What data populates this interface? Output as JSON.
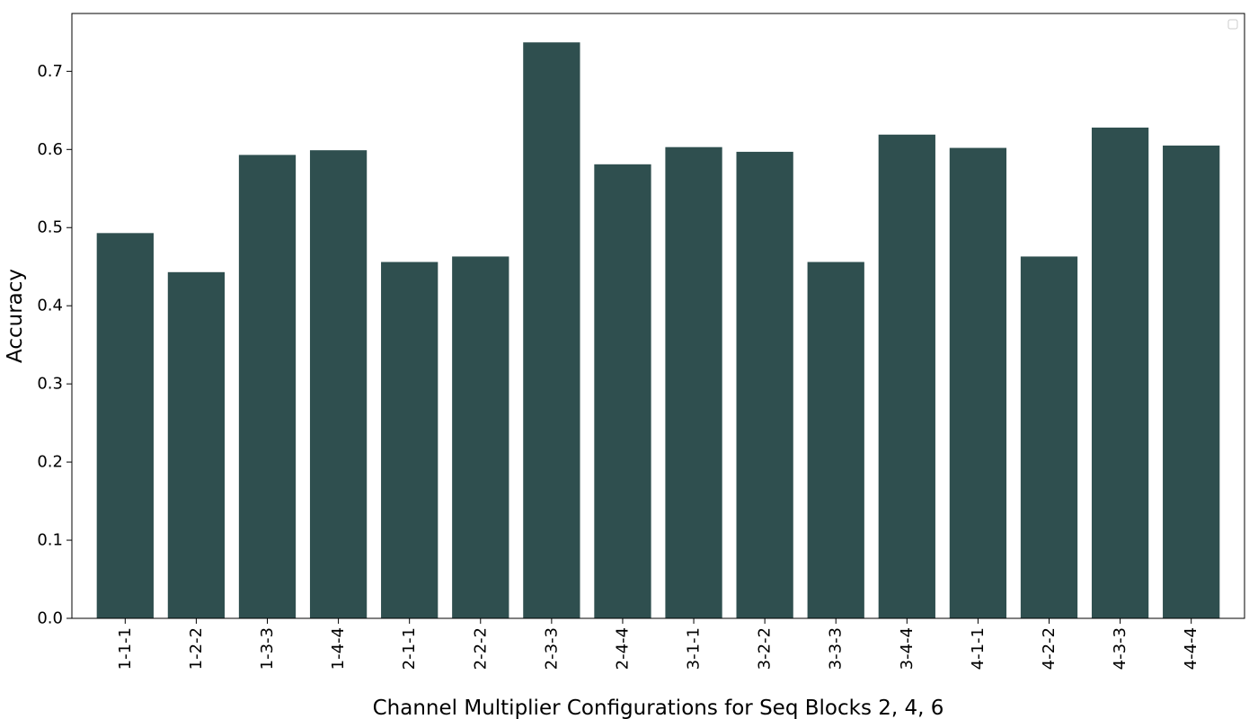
{
  "chart_data": {
    "type": "bar",
    "title": "",
    "xlabel": "Channel Multiplier Configurations for Seq Blocks 2, 4, 6",
    "ylabel": "Accuracy",
    "categories": [
      "1-1-1",
      "1-2-2",
      "1-3-3",
      "1-4-4",
      "2-1-1",
      "2-2-2",
      "2-3-3",
      "2-4-4",
      "3-1-1",
      "3-2-2",
      "3-3-3",
      "3-4-4",
      "4-1-1",
      "4-2-2",
      "4-3-3",
      "4-4-4"
    ],
    "values": [
      0.493,
      0.443,
      0.593,
      0.599,
      0.456,
      0.463,
      0.737,
      0.581,
      0.603,
      0.597,
      0.456,
      0.619,
      0.602,
      0.463,
      0.628,
      0.605
    ],
    "yticks": [
      "0.0",
      "0.1",
      "0.2",
      "0.3",
      "0.4",
      "0.5",
      "0.6",
      "0.7"
    ],
    "ylim": [
      0,
      0.774
    ],
    "bar_color": "#2f4f4f",
    "grid": false,
    "legend": {
      "position": "top-right",
      "entries": []
    }
  }
}
